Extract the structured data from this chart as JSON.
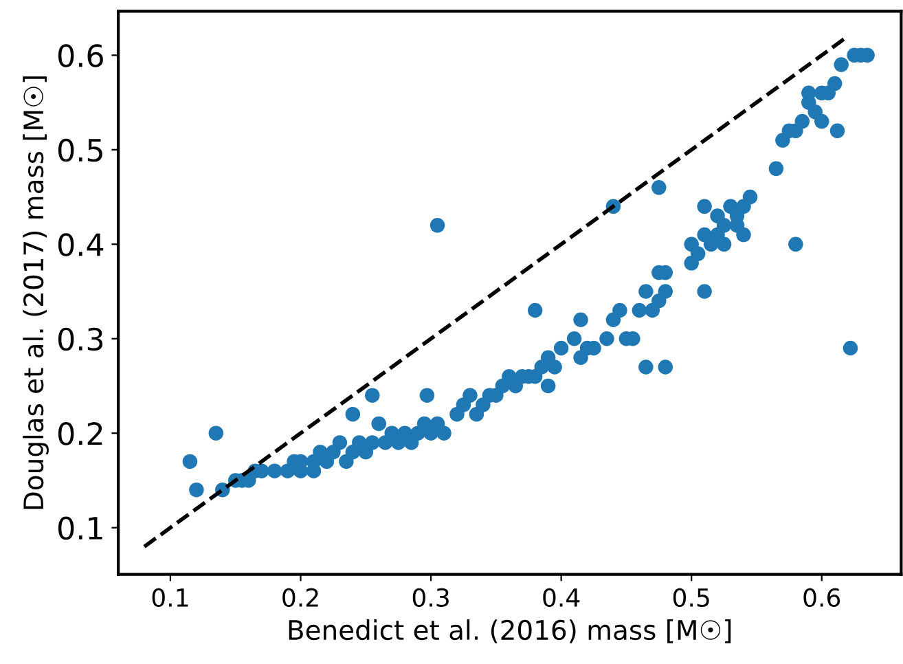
{
  "chart_data": {
    "type": "scatter",
    "xlabel": "Benedict et al. (2016) mass [M☉]",
    "ylabel": "Douglas et al. (2017) mass [M☉]",
    "xlim": [
      0.06,
      0.661
    ],
    "ylim": [
      0.0506,
      0.6465
    ],
    "xticks": [
      0.1,
      0.2,
      0.3,
      0.4,
      0.5,
      0.6
    ],
    "yticks": [
      0.1,
      0.2,
      0.3,
      0.4,
      0.5,
      0.6
    ],
    "grid": false,
    "legend": false,
    "series": [
      {
        "color": "#1f77b4",
        "marker": "circle",
        "x": [
          0.115,
          0.135,
          0.12,
          0.305,
          0.44,
          0.475,
          0.38,
          0.58,
          0.622,
          0.465,
          0.48,
          0.51,
          0.255,
          0.24,
          0.297,
          0.14,
          0.15,
          0.155,
          0.16,
          0.165,
          0.17,
          0.18,
          0.19,
          0.195,
          0.2,
          0.2,
          0.21,
          0.21,
          0.215,
          0.22,
          0.225,
          0.23,
          0.235,
          0.24,
          0.245,
          0.25,
          0.255,
          0.26,
          0.265,
          0.27,
          0.275,
          0.28,
          0.285,
          0.29,
          0.295,
          0.3,
          0.305,
          0.31,
          0.32,
          0.325,
          0.33,
          0.335,
          0.34,
          0.345,
          0.35,
          0.355,
          0.36,
          0.365,
          0.37,
          0.375,
          0.38,
          0.385,
          0.39,
          0.39,
          0.395,
          0.4,
          0.41,
          0.415,
          0.415,
          0.42,
          0.425,
          0.435,
          0.44,
          0.445,
          0.45,
          0.455,
          0.46,
          0.465,
          0.47,
          0.475,
          0.475,
          0.48,
          0.48,
          0.5,
          0.5,
          0.505,
          0.51,
          0.51,
          0.515,
          0.52,
          0.525,
          0.53,
          0.535,
          0.54,
          0.545,
          0.525,
          0.52,
          0.565,
          0.57,
          0.575,
          0.58,
          0.585,
          0.59,
          0.59,
          0.595,
          0.6,
          0.6,
          0.605,
          0.61,
          0.612,
          0.615,
          0.625,
          0.63,
          0.635,
          0.54,
          0.535
        ],
        "values": [
          0.17,
          0.2,
          0.14,
          0.42,
          0.44,
          0.46,
          0.33,
          0.4,
          0.29,
          0.27,
          0.27,
          0.35,
          0.24,
          0.22,
          0.24,
          0.14,
          0.15,
          0.15,
          0.15,
          0.16,
          0.16,
          0.16,
          0.16,
          0.17,
          0.16,
          0.17,
          0.16,
          0.17,
          0.18,
          0.17,
          0.18,
          0.19,
          0.17,
          0.18,
          0.19,
          0.18,
          0.19,
          0.21,
          0.19,
          0.2,
          0.19,
          0.2,
          0.19,
          0.2,
          0.21,
          0.2,
          0.21,
          0.2,
          0.22,
          0.23,
          0.24,
          0.22,
          0.23,
          0.24,
          0.24,
          0.25,
          0.26,
          0.25,
          0.26,
          0.26,
          0.26,
          0.27,
          0.28,
          0.25,
          0.27,
          0.29,
          0.3,
          0.32,
          0.28,
          0.29,
          0.29,
          0.3,
          0.32,
          0.33,
          0.3,
          0.3,
          0.33,
          0.35,
          0.33,
          0.37,
          0.34,
          0.35,
          0.37,
          0.38,
          0.4,
          0.39,
          0.41,
          0.44,
          0.4,
          0.41,
          0.42,
          0.44,
          0.43,
          0.44,
          0.45,
          0.4,
          0.43,
          0.48,
          0.51,
          0.52,
          0.52,
          0.53,
          0.55,
          0.56,
          0.54,
          0.56,
          0.53,
          0.56,
          0.57,
          0.52,
          0.59,
          0.6,
          0.6,
          0.6,
          0.41,
          0.42
        ]
      },
      {
        "type": "line",
        "color": "#000000",
        "line_style": "dashed",
        "marker": "none",
        "x": [
          0.08,
          0.62
        ],
        "values": [
          0.08,
          0.62
        ]
      }
    ]
  }
}
